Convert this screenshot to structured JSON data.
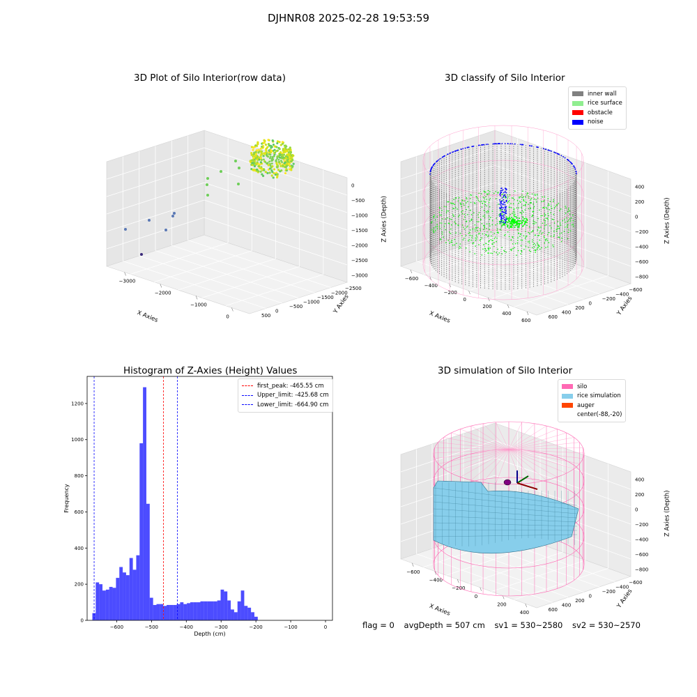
{
  "figure": {
    "suptitle": "DJHNR08 2025-02-28 19:53:59",
    "footer": {
      "flag": "flag = 0",
      "avg": "avgDepth = 507 cm",
      "sv1": "sv1 = 530~2580",
      "sv2": "sv2 = 530~2570"
    }
  },
  "chart_data": [
    {
      "type": "scatter",
      "title": "3D Plot of Silo Interior(row data)",
      "xlabel": "X Axies",
      "ylabel": "Y Axies",
      "zlabel": "Z Axies (Depth)",
      "x_ticks": [
        "−3000",
        "−2000",
        "−1000",
        "0"
      ],
      "y_ticks": [
        "500",
        "0",
        "−500",
        "−1000",
        "−1500",
        "−2000",
        "−2500"
      ],
      "z_ticks": [
        "0",
        "−500",
        "−1000",
        "−1500",
        "−2000",
        "−2500",
        "−3000"
      ],
      "colormap": "viridis"
    },
    {
      "type": "scatter",
      "title": "3D classify of Silo Interior",
      "xlabel": "X Axies",
      "ylabel": "Y Axies",
      "zlabel": "Z Axies (Depth)",
      "x_ticks": [
        "−600",
        "−400",
        "−200",
        "0",
        "200",
        "400",
        "600"
      ],
      "y_ticks": [
        "600",
        "400",
        "200",
        "0",
        "−200",
        "−400",
        "−600"
      ],
      "z_ticks": [
        "400",
        "200",
        "0",
        "−200",
        "−400",
        "−600",
        "−800"
      ],
      "legend": [
        {
          "label": "inner wall",
          "color": "#808080"
        },
        {
          "label": "rice surface",
          "color": "#90ee90"
        },
        {
          "label": "obstacle",
          "color": "#ff0000"
        },
        {
          "label": "noise",
          "color": "#0000ff"
        }
      ]
    },
    {
      "type": "bar",
      "title": "Histogram of Z-Axies (Height) Values",
      "xlabel": "Depth (cm)",
      "ylabel": "Frequency",
      "xlim": [
        -685,
        20
      ],
      "ylim": [
        0,
        1350
      ],
      "x_ticks": [
        -600,
        -500,
        -400,
        -300,
        -200,
        -100,
        0
      ],
      "y_ticks": [
        0,
        200,
        400,
        600,
        800,
        1000,
        1200
      ],
      "bin_start": -670,
      "bin_width": 9.7,
      "values": [
        40,
        210,
        200,
        165,
        170,
        185,
        180,
        235,
        295,
        265,
        250,
        345,
        280,
        360,
        980,
        1290,
        645,
        125,
        85,
        90,
        90,
        80,
        85,
        85,
        85,
        90,
        100,
        90,
        95,
        100,
        100,
        100,
        105,
        105,
        105,
        105,
        105,
        110,
        170,
        160,
        110,
        60,
        45,
        105,
        165,
        80,
        70,
        45,
        20
      ],
      "bar_color": "#0000ff",
      "vlines": [
        {
          "label": "first_peak: -465.55 cm",
          "x": -465.55,
          "color": "#ff0000"
        },
        {
          "label": "Upper_limit: -425.68 cm",
          "x": -425.68,
          "color": "#0000ff"
        },
        {
          "label": "Lower_limit: -664.90 cm",
          "x": -664.9,
          "color": "#0000ff"
        }
      ]
    },
    {
      "type": "other",
      "title": "3D simulation of Silo Interior",
      "xlabel": "X Axies",
      "ylabel": "Y Axies",
      "zlabel": "Z Axies (Depth)",
      "x_ticks": [
        "−600",
        "−400",
        "−200",
        "0",
        "200",
        "400"
      ],
      "y_ticks": [
        "600",
        "400",
        "200",
        "0",
        "−200",
        "−400",
        "−600"
      ],
      "z_ticks": [
        "400",
        "200",
        "0",
        "−200",
        "−400",
        "−600",
        "−800"
      ],
      "legend": [
        {
          "label": "silo",
          "color": "#ff69b4"
        },
        {
          "label": "rice simulation",
          "color": "#87ceeb"
        },
        {
          "label": "auger",
          "color": "#ff4500"
        },
        {
          "label": "center(-88,-20)",
          "color": ""
        }
      ]
    }
  ]
}
